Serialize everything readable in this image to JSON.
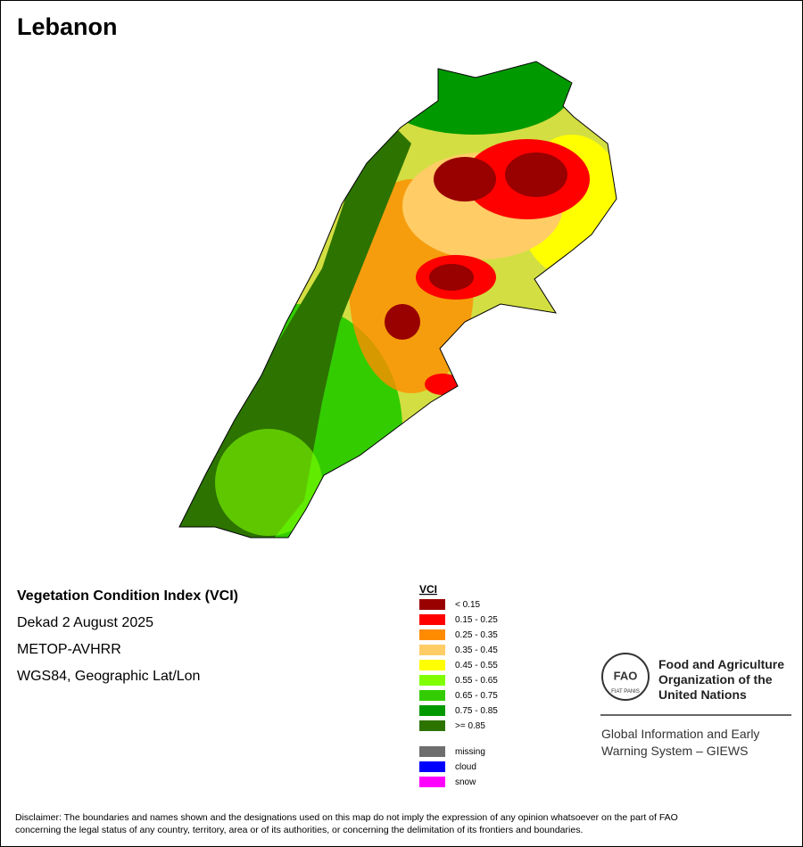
{
  "title": "Lebanon",
  "info": [
    "Vegetation Condition Index (VCI)",
    "Dekad 2 August 2025",
    "METOP-AVHRR",
    "WGS84, Geographic Lat/Lon"
  ],
  "legend": {
    "title": "VCI",
    "items": [
      {
        "label": "< 0.15",
        "color": "#990000"
      },
      {
        "label": "0.15 - 0.25",
        "color": "#ff0000"
      },
      {
        "label": "0.25 - 0.35",
        "color": "#ff8c00"
      },
      {
        "label": "0.35 - 0.45",
        "color": "#ffcc66"
      },
      {
        "label": "0.45 - 0.55",
        "color": "#ffff00"
      },
      {
        "label": "0.55 - 0.65",
        "color": "#80ff00"
      },
      {
        "label": "0.65 - 0.75",
        "color": "#33cc00"
      },
      {
        "label": "0.75 - 0.85",
        "color": "#009900"
      },
      {
        "label": ">= 0.85",
        "color": "#2d7300"
      }
    ],
    "extra": [
      {
        "label": "missing",
        "color": "#6e6e6e"
      },
      {
        "label": "cloud",
        "color": "#0000ff"
      },
      {
        "label": "snow",
        "color": "#ff00ff"
      }
    ]
  },
  "logo": {
    "letters": "FAO",
    "motto": "FIAT PANIS",
    "org": [
      "Food and Agriculture",
      "Organization of the",
      "United Nations"
    ],
    "system": [
      "Global Information and Early",
      "Warning System – GIEWS"
    ]
  },
  "disclaimer": [
    "Disclaimer: The boundaries and names shown and the designations used on this map do not imply the expression of any opinion whatsoever on the part of FAO",
    "concerning the legal status of any country, territory, area or of its authorities, or concerning the delimitation of its frontiers and boundaries."
  ]
}
